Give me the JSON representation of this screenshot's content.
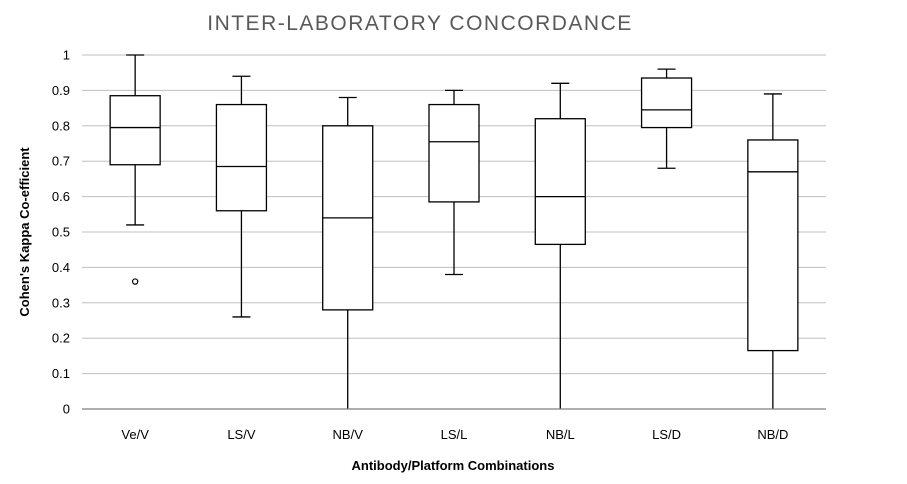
{
  "chart_data": {
    "type": "boxplot",
    "title": "INTER-LABORATORY CONCORDANCE",
    "xlabel": "Antibody/Platform Combinations",
    "ylabel": "Cohen's Kappa Co-efficient",
    "ylim": [
      0,
      1
    ],
    "ytick_step": 0.1,
    "yticks": [
      "0",
      "0.1",
      "0.2",
      "0.3",
      "0.4",
      "0.5",
      "0.6",
      "0.7",
      "0.8",
      "0.9",
      "1"
    ],
    "grid": true,
    "categories": [
      "Ve/V",
      "LS/V",
      "NB/V",
      "LS/L",
      "NB/L",
      "LS/D",
      "NB/D"
    ],
    "boxes": [
      {
        "category": "Ve/V",
        "min": 0.52,
        "q1": 0.69,
        "median": 0.795,
        "q3": 0.885,
        "max": 1.0,
        "outliers": [
          0.36
        ]
      },
      {
        "category": "LS/V",
        "min": 0.26,
        "q1": 0.56,
        "median": 0.685,
        "q3": 0.86,
        "max": 0.94,
        "outliers": []
      },
      {
        "category": "NB/V",
        "min": 0.0,
        "q1": 0.28,
        "median": 0.54,
        "q3": 0.8,
        "max": 0.88,
        "outliers": []
      },
      {
        "category": "LS/L",
        "min": 0.38,
        "q1": 0.585,
        "median": 0.755,
        "q3": 0.86,
        "max": 0.9,
        "outliers": []
      },
      {
        "category": "NB/L",
        "min": 0.0,
        "q1": 0.465,
        "median": 0.6,
        "q3": 0.82,
        "max": 0.92,
        "outliers": []
      },
      {
        "category": "LS/D",
        "min": 0.68,
        "q1": 0.795,
        "median": 0.845,
        "q3": 0.935,
        "max": 0.96,
        "outliers": []
      },
      {
        "category": "NB/D",
        "min": 0.0,
        "q1": 0.165,
        "median": 0.67,
        "q3": 0.76,
        "max": 0.89,
        "outliers": []
      }
    ],
    "colors": {
      "box": "#000000",
      "grid": "#bfbfbf",
      "axis": "#7f7f7f",
      "title": "#595959"
    }
  }
}
